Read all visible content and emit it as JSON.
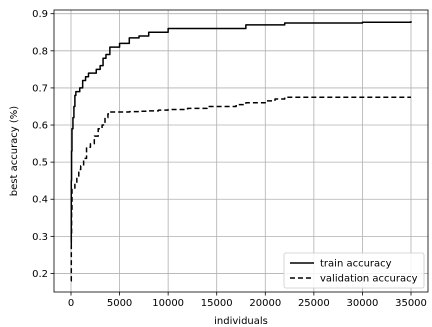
{
  "chart_data": {
    "type": "line",
    "title": "",
    "xlabel": "individuals",
    "ylabel": "best accuracy (%)",
    "xlim": [
      -1750,
      36750
    ],
    "ylim": [
      0.15,
      0.91
    ],
    "grid": true,
    "legend_position": "lower-right",
    "x_ticks": [
      0,
      5000,
      10000,
      15000,
      20000,
      25000,
      30000,
      35000
    ],
    "x_tick_labels": [
      "0",
      "5000",
      "10000",
      "15000",
      "20000",
      "25000",
      "30000",
      "35000"
    ],
    "y_ticks": [
      0.2,
      0.3,
      0.4,
      0.5,
      0.6,
      0.7,
      0.8,
      0.9
    ],
    "y_tick_labels": [
      "0.2",
      "0.3",
      "0.4",
      "0.5",
      "0.6",
      "0.7",
      "0.8",
      "0.9"
    ],
    "series": [
      {
        "name": "train accuracy",
        "style": "solid",
        "color": "#000000",
        "x": [
          0,
          30,
          60,
          100,
          200,
          300,
          400,
          500,
          700,
          900,
          1200,
          1500,
          1800,
          2200,
          2600,
          3000,
          3300,
          3600,
          4000,
          5000,
          6000,
          7000,
          8000,
          10000,
          12000,
          14000,
          16000,
          18000,
          20000,
          21000,
          22000,
          25000,
          30000,
          35000
        ],
        "y": [
          0.28,
          0.45,
          0.53,
          0.59,
          0.62,
          0.65,
          0.68,
          0.69,
          0.69,
          0.7,
          0.72,
          0.73,
          0.74,
          0.74,
          0.75,
          0.76,
          0.78,
          0.79,
          0.81,
          0.82,
          0.835,
          0.84,
          0.85,
          0.86,
          0.86,
          0.86,
          0.86,
          0.87,
          0.87,
          0.87,
          0.875,
          0.875,
          0.877,
          0.88
        ]
      },
      {
        "name": "validation accuracy",
        "style": "dashed",
        "color": "#000000",
        "x": [
          0,
          30,
          60,
          100,
          200,
          400,
          600,
          800,
          1000,
          1300,
          1600,
          2000,
          2400,
          2800,
          3200,
          3500,
          3800,
          4000,
          5000,
          6000,
          7000,
          8000,
          9000,
          10000,
          12000,
          14000,
          16000,
          17000,
          18000,
          20000,
          21000,
          22000,
          25000,
          30000,
          35000
        ],
        "y": [
          0.18,
          0.3,
          0.37,
          0.43,
          0.43,
          0.44,
          0.46,
          0.48,
          0.49,
          0.51,
          0.54,
          0.55,
          0.57,
          0.59,
          0.6,
          0.62,
          0.63,
          0.635,
          0.635,
          0.636,
          0.637,
          0.638,
          0.64,
          0.642,
          0.645,
          0.65,
          0.65,
          0.655,
          0.66,
          0.665,
          0.67,
          0.675,
          0.675,
          0.675,
          0.675
        ]
      }
    ]
  }
}
